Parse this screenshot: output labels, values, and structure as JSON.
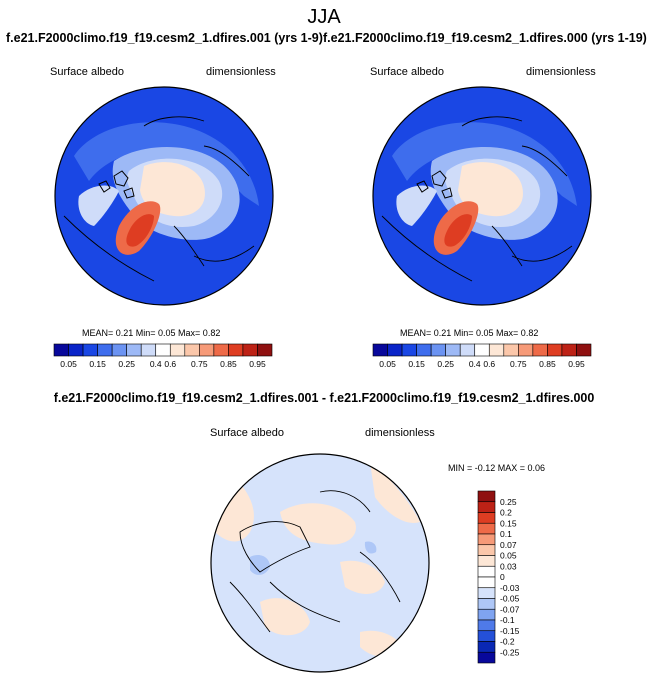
{
  "season": "JJA",
  "panels": [
    {
      "title": "f.e21.F2000climo.f19_f19.cesm2_1.dfires.001 (yrs 1-9)",
      "variable": "Surface albedo",
      "units": "dimensionless",
      "stats": "MEAN=   0.21  Min=   0.05  Max=   0.82"
    },
    {
      "title": "f.e21.F2000climo.f19_f19.cesm2_1.dfires.000 (yrs 1-19)",
      "variable": "Surface albedo",
      "units": "dimensionless",
      "stats": "MEAN=   0.21  Min=   0.05  Max=   0.82"
    }
  ],
  "diff": {
    "title": "f.e21.F2000climo.f19_f19.cesm2_1.dfires.001 - f.e21.F2000climo.f19_f19.cesm2_1.dfires.000",
    "variable": "Surface albedo",
    "units": "dimensionless",
    "stats": "MIN =  -0.12 MAX =   0.06"
  },
  "chart_data": [
    {
      "type": "heatmap",
      "projection": "north-polar-stereographic",
      "title": "f.e21.F2000climo.f19_f19.cesm2_1.dfires.001 (yrs 1-9)",
      "colorbar_ticks": [
        "0.05",
        "0.15",
        "0.25",
        "0.4",
        "0.6",
        "0.75",
        "0.85",
        "0.95"
      ],
      "colorbar_colors": [
        "#08089b",
        "#0a24c8",
        "#1a47e4",
        "#3e6ded",
        "#6b93f2",
        "#9db9f6",
        "#cfdcf9",
        "#ffffff",
        "#fde7d6",
        "#fbc7aa",
        "#f69a78",
        "#ee6a48",
        "#de3d22",
        "#bd2216",
        "#8f1010"
      ],
      "colorbar_placement": "bottom",
      "mean": 0.21,
      "min": 0.05,
      "max": 0.82
    },
    {
      "type": "heatmap",
      "projection": "north-polar-stereographic",
      "title": "f.e21.F2000climo.f19_f19.cesm2_1.dfires.000 (yrs 1-19)",
      "colorbar_ticks": [
        "0.05",
        "0.15",
        "0.25",
        "0.4",
        "0.6",
        "0.75",
        "0.85",
        "0.95"
      ],
      "colorbar_colors": [
        "#08089b",
        "#0a24c8",
        "#1a47e4",
        "#3e6ded",
        "#6b93f2",
        "#9db9f6",
        "#cfdcf9",
        "#ffffff",
        "#fde7d6",
        "#fbc7aa",
        "#f69a78",
        "#ee6a48",
        "#de3d22",
        "#bd2216",
        "#8f1010"
      ],
      "colorbar_placement": "bottom",
      "mean": 0.21,
      "min": 0.05,
      "max": 0.82
    },
    {
      "type": "heatmap",
      "projection": "north-polar-stereographic",
      "title": "f.e21.F2000climo.f19_f19.cesm2_1.dfires.001 - f.e21.F2000climo.f19_f19.cesm2_1.dfires.000",
      "colorbar_ticks": [
        "0.25",
        "0.2",
        "0.15",
        "0.1",
        "0.07",
        "0.05",
        "0.03",
        "0",
        "-0.03",
        "-0.05",
        "-0.07",
        "-0.1",
        "-0.15",
        "-0.2",
        "-0.25"
      ],
      "colorbar_colors": [
        "#8f1010",
        "#bd2216",
        "#de3d22",
        "#ee6a48",
        "#f69a78",
        "#fbc7aa",
        "#fde7d6",
        "#ffffff",
        "#ffffff",
        "#d6e3fb",
        "#aec7f7",
        "#7fa4f1",
        "#4f7ae9",
        "#2450d8",
        "#0a28b4",
        "#08089b"
      ],
      "colorbar_placement": "right",
      "min": -0.12,
      "max": 0.06
    }
  ]
}
